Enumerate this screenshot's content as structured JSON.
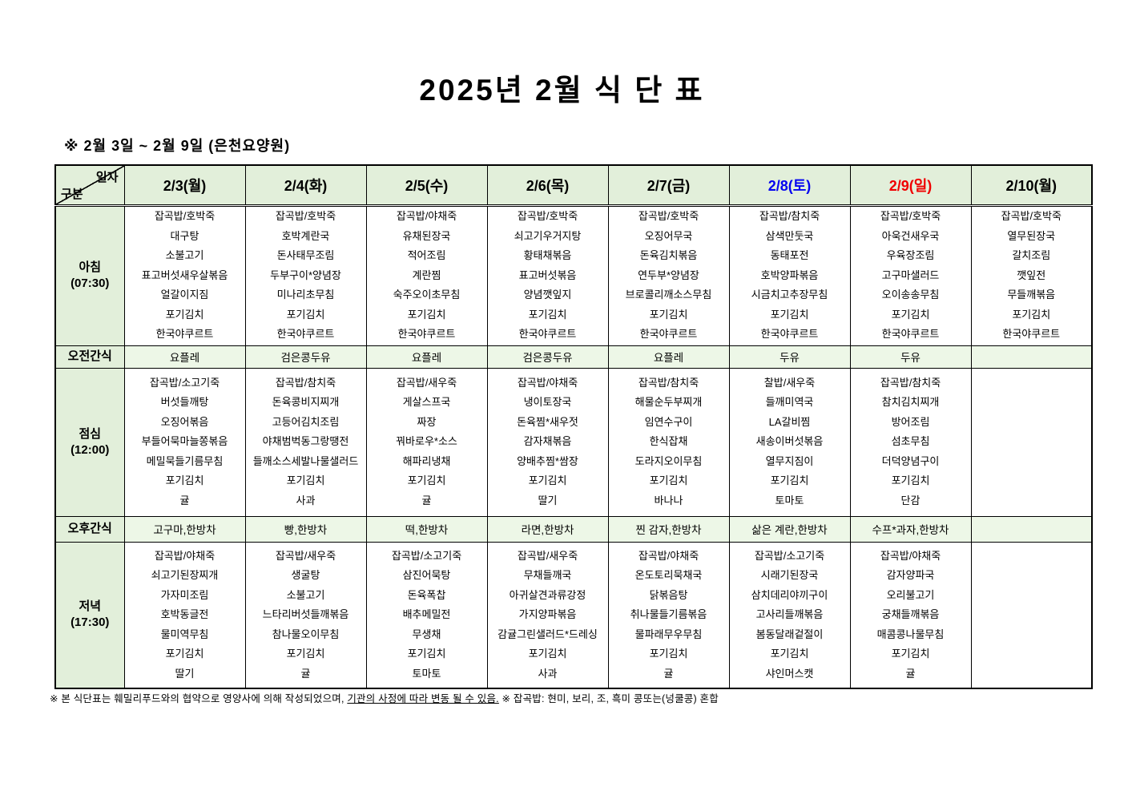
{
  "page": {
    "title": "2025년 2월 식 단 표",
    "subtitle": "※ 2월 3일 ~ 2월 9일 (은천요양원)"
  },
  "colors": {
    "header_bg": "#e2efda",
    "snack_row_bg": "#edf7e7",
    "weekday_text": "#000000",
    "saturday_text": "#0404f0",
    "sunday_text": "#f00000"
  },
  "table": {
    "corner": {
      "top_right": "일자",
      "bottom_left": "구분"
    },
    "columns": [
      {
        "label": "2/3(월)",
        "color": "#000000"
      },
      {
        "label": "2/4(화)",
        "color": "#000000"
      },
      {
        "label": "2/5(수)",
        "color": "#000000"
      },
      {
        "label": "2/6(목)",
        "color": "#000000"
      },
      {
        "label": "2/7(금)",
        "color": "#000000"
      },
      {
        "label": "2/8(토)",
        "color": "#0404f0"
      },
      {
        "label": "2/9(일)",
        "color": "#f00000"
      },
      {
        "label": "2/10(월)",
        "color": "#000000"
      }
    ],
    "rows": [
      {
        "type": "meal",
        "key": "breakfast",
        "label": "아침",
        "time": "(07:30)",
        "cells": [
          [
            "잡곡밥/호박죽",
            "대구탕",
            "소불고기",
            "표고버섯새우살볶음",
            "얼갈이지짐",
            "포기김치",
            "한국야쿠르트"
          ],
          [
            "잡곡밥/호박죽",
            "호박계란국",
            "돈사태무조림",
            "두부구이*양념장",
            "미나리초무침",
            "포기김치",
            "한국야쿠르트"
          ],
          [
            "잡곡밥/야채죽",
            "유채된장국",
            "적어조림",
            "계란찜",
            "숙주오이초무침",
            "포기김치",
            "한국야쿠르트"
          ],
          [
            "잡곡밥/호박죽",
            "쇠고기우거지탕",
            "황태채볶음",
            "표고버섯볶음",
            "양념깻잎지",
            "포기김치",
            "한국야쿠르트"
          ],
          [
            "잡곡밥/호박죽",
            "오징어무국",
            "돈육김치볶음",
            "연두부*양념장",
            "브로콜리깨소스무침",
            "포기김치",
            "한국야쿠르트"
          ],
          [
            "잡곡밥/참치죽",
            "삼색만둣국",
            "동태포전",
            "호박양파볶음",
            "시금치고추장무침",
            "포기김치",
            "한국야쿠르트"
          ],
          [
            "잡곡밥/호박죽",
            "아욱건새우국",
            "우육장조림",
            "고구마샐러드",
            "오이송송무침",
            "포기김치",
            "한국야쿠르트"
          ],
          [
            "잡곡밥/호박죽",
            "열무된장국",
            "갈치조림",
            "깻잎전",
            "무들깨볶음",
            "포기김치",
            "한국야쿠르트"
          ]
        ]
      },
      {
        "type": "snack",
        "key": "am-snack",
        "label": "오전간식",
        "cells": [
          "요플레",
          "검은콩두유",
          "요플레",
          "검은콩두유",
          "요플레",
          "두유",
          "두유",
          ""
        ]
      },
      {
        "type": "meal",
        "key": "lunch",
        "label": "점심",
        "time": "(12:00)",
        "cells": [
          [
            "잡곡밥/소고기죽",
            "버섯들깨탕",
            "오징어볶음",
            "부들어묵마늘쫑볶음",
            "메밀묵들기름무침",
            "포기김치",
            "귤"
          ],
          [
            "잡곡밥/참치죽",
            "돈육콩비지찌개",
            "고등어김치조림",
            "야채범벅동그랑땡전",
            "들깨소스세발나물샐러드",
            "포기김치",
            "사과"
          ],
          [
            "잡곡밥/새우죽",
            "게살스프국",
            "짜장",
            "꿔바로우*소스",
            "해파리냉채",
            "포기김치",
            "귤"
          ],
          [
            "잡곡밥/야채죽",
            "냉이토장국",
            "돈육찜*새우젓",
            "감자채볶음",
            "양배추찜*쌈장",
            "포기김치",
            "딸기"
          ],
          [
            "잡곡밥/참치죽",
            "해물순두부찌개",
            "임연수구이",
            "한식잡채",
            "도라지오이무침",
            "포기김치",
            "바나나"
          ],
          [
            "찰밥/새우죽",
            "들깨미역국",
            "LA갈비찜",
            "새송이버섯볶음",
            "열무지짐이",
            "포기김치",
            "토마토"
          ],
          [
            "잡곡밥/참치죽",
            "참치김치찌개",
            "방어조림",
            "섬초무침",
            "더덕양념구이",
            "포기김치",
            "단감"
          ],
          []
        ]
      },
      {
        "type": "snack",
        "key": "pm-snack",
        "label": "오후간식",
        "cells": [
          "고구마,한방차",
          "빵,한방차",
          "떡,한방차",
          "라면,한방차",
          "찐 감자,한방차",
          "삶은 계란,한방차",
          "수프*과자,한방차",
          ""
        ]
      },
      {
        "type": "meal",
        "key": "dinner",
        "label": "저녁",
        "time": "(17:30)",
        "cells": [
          [
            "잡곡밥/야채죽",
            "쇠고기된장찌개",
            "가자미조림",
            "호박동글전",
            "물미역무침",
            "포기김치",
            "딸기"
          ],
          [
            "잡곡밥/새우죽",
            "생굴탕",
            "소불고기",
            "느타리버섯들깨볶음",
            "참나물오이무침",
            "포기김치",
            "귤"
          ],
          [
            "잡곡밥/소고기죽",
            "삼진어묵탕",
            "돈육폭찹",
            "배추메밀전",
            "무생채",
            "포기김치",
            "토마토"
          ],
          [
            "잡곡밥/새우죽",
            "무채들깨국",
            "아귀살견과류강정",
            "가지양파볶음",
            "감귤그린샐러드*드레싱",
            "포기김치",
            "사과"
          ],
          [
            "잡곡밥/야채죽",
            "온도토리묵채국",
            "닭볶음탕",
            "취나물들기름볶음",
            "물파래무우무침",
            "포기김치",
            "귤"
          ],
          [
            "잡곡밥/소고기죽",
            "시래기된장국",
            "삼치데리야끼구이",
            "고사리들깨볶음",
            "봄동달래겉절이",
            "포기김치",
            "샤인머스캣"
          ],
          [
            "잡곡밥/야채죽",
            "감자양파국",
            "오리불고기",
            "궁채들깨볶음",
            "매콤콩나물무침",
            "포기김치",
            "귤"
          ],
          []
        ]
      }
    ]
  },
  "footer": {
    "part1": "※ 본 식단표는 훼밀리푸드와의 협약으로 영양사에 의해 작성되었으며, ",
    "underlined": "기관의 사정에 따라 변동 될 수 있음.",
    "part2": " ※ 잡곡밥: 현미, 보리, 조, 흑미 콩또는(넝쿨콩) 혼합"
  }
}
